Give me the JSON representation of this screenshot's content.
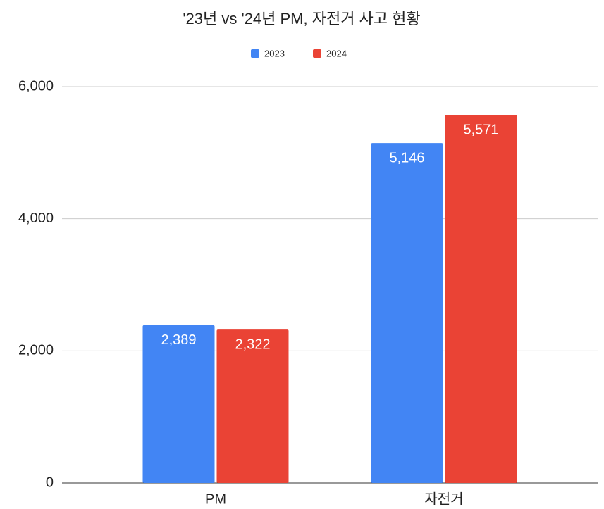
{
  "chart_data": {
    "type": "bar",
    "title": "'23년 vs '24년 PM, 자전거 사고 현황",
    "categories": [
      "PM",
      "자전거"
    ],
    "series": [
      {
        "name": "2023",
        "color": "#4285f4",
        "values": [
          2389,
          5146
        ],
        "value_labels": [
          "2,389",
          "5,146"
        ]
      },
      {
        "name": "2024",
        "color": "#ea4335",
        "values": [
          2322,
          5571
        ],
        "value_labels": [
          "2,322",
          "5,571"
        ]
      }
    ],
    "ylim": [
      0,
      6000
    ],
    "yticks": [
      0,
      {
        "value": 2000,
        "label": "2,000"
      },
      {
        "value": 4000,
        "label": "4,000"
      },
      {
        "value": 6000,
        "label": "6,000"
      }
    ],
    "grid": true
  }
}
